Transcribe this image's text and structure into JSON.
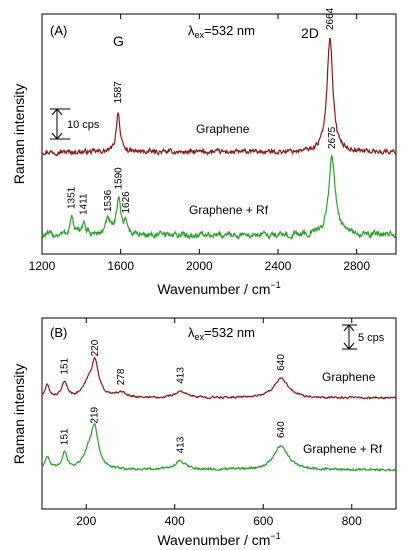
{
  "chart_data": [
    {
      "type": "line",
      "panel_label": "(A)",
      "excitation_prefix": "λ",
      "excitation_sub": "ex",
      "excitation_value": "=532 nm",
      "xlabel": "Wavenumber / cm",
      "xlabel_sup": "−1",
      "ylabel": "Raman intensity",
      "xlim": [
        1200,
        3000
      ],
      "x_ticks": [
        1200,
        1600,
        2000,
        2400,
        2800
      ],
      "y_axis_numbers": "none",
      "scale_bar_label": "10 cps",
      "scale_bar_cps": 10,
      "band_labels": [
        "G",
        "2D"
      ],
      "series": [
        {
          "name": "Graphene",
          "color": "#8b1a1a",
          "baseline_cps": 0,
          "noise_cps": 0.6,
          "peaks": [
            {
              "x": 1587,
              "height_cps": 13.5,
              "width_cm1": 11
            },
            {
              "x": 2664,
              "height_cps": 38,
              "width_cm1": 18
            }
          ],
          "peak_labels": [
            1587,
            2664
          ]
        },
        {
          "name": "Graphene + Rf",
          "color": "#2ca02c",
          "baseline_cps": -33,
          "noise_cps": 0.8,
          "peaks": [
            {
              "x": 1351,
              "height_cps": 6,
              "width_cm1": 10
            },
            {
              "x": 1411,
              "height_cps": 4,
              "width_cm1": 12
            },
            {
              "x": 1536,
              "height_cps": 5,
              "width_cm1": 14
            },
            {
              "x": 1590,
              "height_cps": 12.5,
              "width_cm1": 12
            },
            {
              "x": 1626,
              "height_cps": 4.5,
              "width_cm1": 10
            },
            {
              "x": 2675,
              "height_cps": 26,
              "width_cm1": 20
            }
          ],
          "peak_labels": [
            1351,
            1411,
            1536,
            1590,
            1626,
            2675
          ]
        }
      ]
    },
    {
      "type": "line",
      "panel_label": "(B)",
      "excitation_prefix": "λ",
      "excitation_sub": "ex",
      "excitation_value": "=532 nm",
      "xlabel": "Wavenumber / cm",
      "xlabel_sup": "−1",
      "ylabel": "Raman intensity",
      "xlim": [
        100,
        900
      ],
      "x_ticks": [
        200,
        400,
        600,
        800
      ],
      "y_axis_numbers": "none",
      "scale_bar_label": "5 cps",
      "scale_bar_cps": 5,
      "series": [
        {
          "name": "Graphene",
          "color": "#8b1a1a",
          "baseline_cps": 0,
          "noise_cps": 0.15,
          "peaks": [
            {
              "x": 112,
              "height_cps": 2.5,
              "width_cm1": 6
            },
            {
              "x": 151,
              "height_cps": 3.2,
              "width_cm1": 7
            },
            {
              "x": 205,
              "height_cps": 2.5,
              "width_cm1": 14
            },
            {
              "x": 220,
              "height_cps": 7,
              "width_cm1": 10
            },
            {
              "x": 278,
              "height_cps": 1,
              "width_cm1": 14
            },
            {
              "x": 413,
              "height_cps": 1.3,
              "width_cm1": 16
            },
            {
              "x": 640,
              "height_cps": 4,
              "width_cm1": 20
            }
          ],
          "peak_labels": [
            151,
            220,
            278,
            413,
            640
          ]
        },
        {
          "name": "Graphene + Rf",
          "color": "#2ca02c",
          "baseline_cps": -10,
          "noise_cps": 0.18,
          "peaks": [
            {
              "x": 112,
              "height_cps": 2.8,
              "width_cm1": 6
            },
            {
              "x": 151,
              "height_cps": 3.5,
              "width_cm1": 7
            },
            {
              "x": 205,
              "height_cps": 3,
              "width_cm1": 14
            },
            {
              "x": 219,
              "height_cps": 8,
              "width_cm1": 10
            },
            {
              "x": 413,
              "height_cps": 1.8,
              "width_cm1": 16
            },
            {
              "x": 640,
              "height_cps": 5,
              "width_cm1": 20
            }
          ],
          "peak_labels": [
            151,
            219,
            413,
            640
          ]
        }
      ]
    }
  ]
}
